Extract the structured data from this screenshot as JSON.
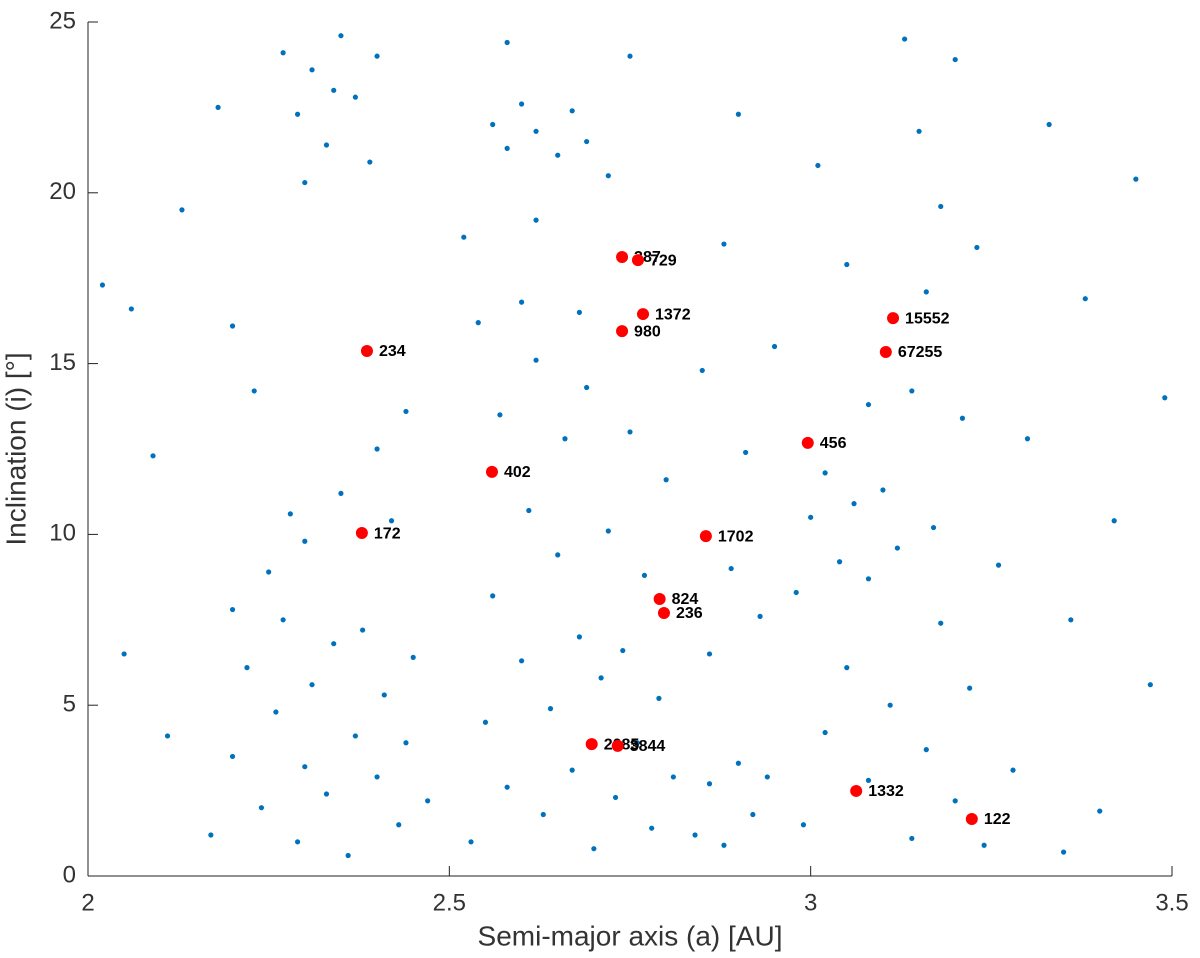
{
  "chart_data": {
    "type": "scatter",
    "x_label": "Semi-major axis (a) [AU]",
    "y_label": "Inclination (i) [°]",
    "xlim": [
      2,
      3.5
    ],
    "xticks": [
      2,
      2.5,
      3,
      3.5
    ],
    "ylim": [
      0,
      25
    ],
    "yticks": [
      0,
      5,
      10,
      15,
      20,
      25
    ],
    "series": [
      {
        "color": "#0072bd",
        "x": [
          2.17,
          2.2,
          2.22,
          2.24,
          2.26,
          2.27,
          2.29,
          2.3,
          2.31,
          2.33,
          2.34,
          2.36,
          2.37,
          2.38,
          2.4,
          2.41,
          2.43,
          2.44,
          2.45,
          2.47,
          2.25,
          2.3,
          2.35,
          2.4,
          2.42,
          2.44,
          2.28,
          2.2,
          2.02,
          2.06,
          2.09,
          2.11,
          2.05,
          2.13,
          2.18,
          2.2,
          2.23,
          2.27,
          2.29,
          2.31,
          2.33,
          2.35,
          2.37,
          2.39,
          2.3,
          2.34,
          2.4,
          2.53,
          2.55,
          2.56,
          2.57,
          2.58,
          2.6,
          2.61,
          2.62,
          2.63,
          2.64,
          2.65,
          2.66,
          2.67,
          2.68,
          2.69,
          2.7,
          2.71,
          2.72,
          2.73,
          2.74,
          2.75,
          2.76,
          2.77,
          2.78,
          2.79,
          2.8,
          2.81,
          2.54,
          2.6,
          2.68,
          2.56,
          2.58,
          2.6,
          2.62,
          2.65,
          2.67,
          2.69,
          2.52,
          2.62,
          2.72,
          2.75,
          2.58,
          2.84,
          2.86,
          2.88,
          2.9,
          2.92,
          2.94,
          2.86,
          2.89,
          2.91,
          2.85,
          2.93,
          2.88,
          2.9,
          2.95,
          2.98,
          3.0,
          3.02,
          3.04,
          3.06,
          3.08,
          3.1,
          3.12,
          2.99,
          3.02,
          3.05,
          3.08,
          3.11,
          3.14,
          3.16,
          3.18,
          3.2,
          3.22,
          3.24,
          3.14,
          3.16,
          3.18,
          3.15,
          3.2,
          3.13,
          3.21,
          3.17,
          3.08,
          3.05,
          3.01,
          3.23,
          3.28,
          3.3,
          3.33,
          3.36,
          3.38,
          3.4,
          3.42,
          3.45,
          3.47,
          3.49,
          3.26,
          3.35
        ],
        "values": [
          1.2,
          3.5,
          6.1,
          2.0,
          4.8,
          7.5,
          1.0,
          3.2,
          5.6,
          2.4,
          6.8,
          0.6,
          4.1,
          7.2,
          2.9,
          5.3,
          1.5,
          3.9,
          6.4,
          2.2,
          8.9,
          9.8,
          11.2,
          12.5,
          10.4,
          13.6,
          10.6,
          7.8,
          17.3,
          16.6,
          12.3,
          4.1,
          6.5,
          19.5,
          22.5,
          16.1,
          14.2,
          24.1,
          22.3,
          23.6,
          21.4,
          24.6,
          22.8,
          20.9,
          20.3,
          23.0,
          24.0,
          1.0,
          4.5,
          8.2,
          13.5,
          2.6,
          6.3,
          10.7,
          15.1,
          1.8,
          4.9,
          9.4,
          12.8,
          3.1,
          7.0,
          14.3,
          0.8,
          5.8,
          10.1,
          2.3,
          6.6,
          13.0,
          3.9,
          8.8,
          1.4,
          5.2,
          11.6,
          2.9,
          16.2,
          16.8,
          16.5,
          22.0,
          21.3,
          22.6,
          21.8,
          21.1,
          22.4,
          21.5,
          18.7,
          19.2,
          20.5,
          24.0,
          24.4,
          1.2,
          2.7,
          0.9,
          3.3,
          1.8,
          2.9,
          6.5,
          9.0,
          12.4,
          14.8,
          7.6,
          18.5,
          22.3,
          15.5,
          8.3,
          10.5,
          11.8,
          9.2,
          10.9,
          8.7,
          11.3,
          9.6,
          1.5,
          4.2,
          6.1,
          2.8,
          5.0,
          1.1,
          3.7,
          7.4,
          2.2,
          5.5,
          0.9,
          14.2,
          17.1,
          19.6,
          21.8,
          23.9,
          24.5,
          13.4,
          10.2,
          13.8,
          17.9,
          20.8,
          18.4,
          3.1,
          12.8,
          22.0,
          7.5,
          16.9,
          1.9,
          10.4,
          20.4,
          5.6,
          14.0,
          9.1,
          0.7
        ]
      },
      {
        "color": "#ff0000",
        "labels": [
          "234",
          "172",
          "402",
          "387",
          "729",
          "1372",
          "980",
          "1702",
          "824",
          "236",
          "2085",
          "3844",
          "456",
          "15552",
          "67255",
          "1332",
          "122"
        ],
        "x": [
          2.386,
          2.379,
          2.559,
          2.739,
          2.761,
          2.768,
          2.739,
          2.855,
          2.791,
          2.797,
          2.697,
          2.733,
          2.996,
          3.114,
          3.104,
          3.063,
          3.223
        ],
        "values": [
          15.37,
          10.04,
          11.83,
          18.12,
          18.03,
          16.45,
          15.95,
          9.95,
          8.11,
          7.7,
          3.86,
          3.81,
          12.68,
          16.33,
          15.34,
          2.49,
          1.67
        ]
      }
    ]
  }
}
